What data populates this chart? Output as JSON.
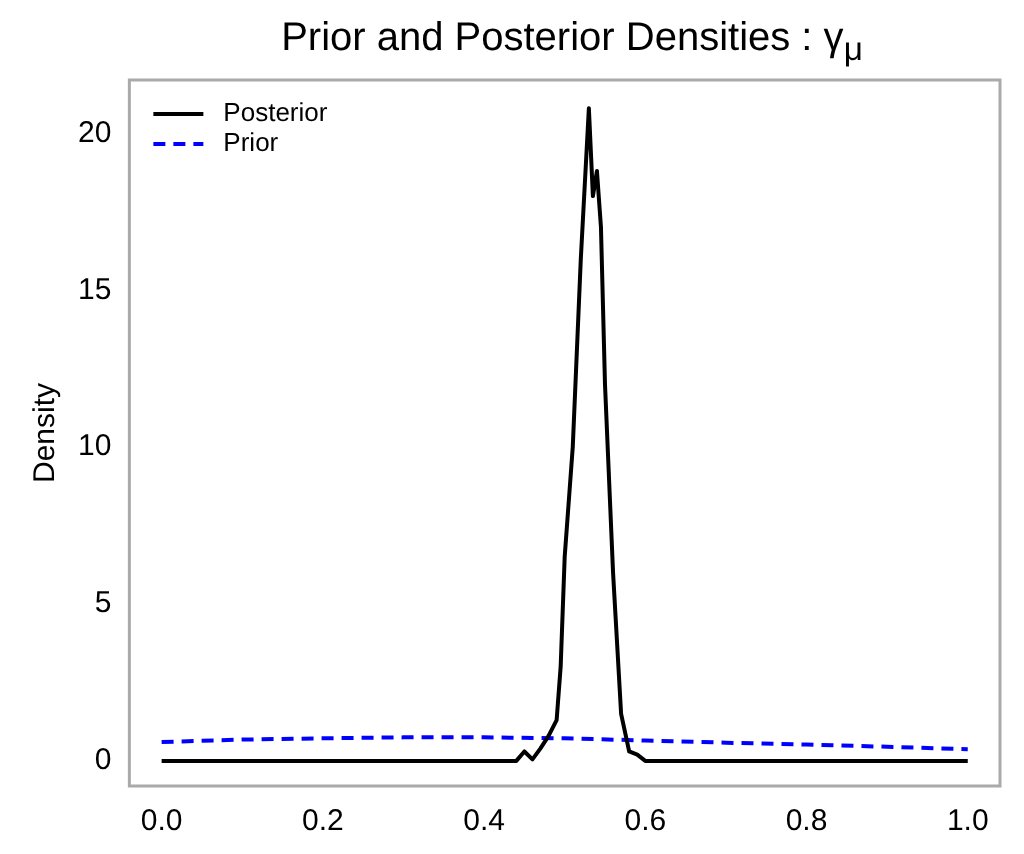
{
  "chart_data": {
    "type": "line",
    "title": "Prior and Posterior Densities : γ$_{μ}$",
    "ylabel": "Density",
    "series": [
      {
        "name": "Posterior",
        "color": "#000000",
        "line_style": "solid",
        "x": [
          0,
          0.44,
          0.45,
          0.46,
          0.47,
          0.48,
          0.49,
          0.495,
          0.5,
          0.51,
          0.52,
          0.53,
          0.535,
          0.54,
          0.545,
          0.55,
          0.56,
          0.57,
          0.58,
          0.59,
          0.6,
          1.0
        ],
        "values": [
          0,
          0,
          0.3,
          0.05,
          0.4,
          0.8,
          1.3,
          3,
          6.5,
          10,
          16,
          20.8,
          18,
          18.8,
          17,
          12,
          6,
          1.5,
          0.3,
          0.2,
          0,
          0
        ]
      },
      {
        "name": "Prior",
        "color": "#0000ff",
        "line_style": "dashed",
        "x": [
          0,
          0.1,
          0.2,
          0.3,
          0.4,
          0.5,
          0.6,
          0.7,
          0.8,
          0.9,
          1.0
        ],
        "values": [
          0.6,
          0.68,
          0.72,
          0.75,
          0.75,
          0.72,
          0.65,
          0.58,
          0.52,
          0.45,
          0.37
        ]
      }
    ],
    "xlim": [
      -0.04,
      1.04
    ],
    "xticks": [
      {
        "value": 0,
        "label": "0.0"
      },
      0.2,
      0.4,
      0.6,
      0.8,
      {
        "value": 1,
        "label": "1.0"
      }
    ],
    "ylim": [
      -0.8,
      21.7
    ],
    "yticks": [
      0,
      5,
      10,
      15,
      20
    ],
    "grid": false,
    "legend": "top left",
    "marker": "none"
  }
}
